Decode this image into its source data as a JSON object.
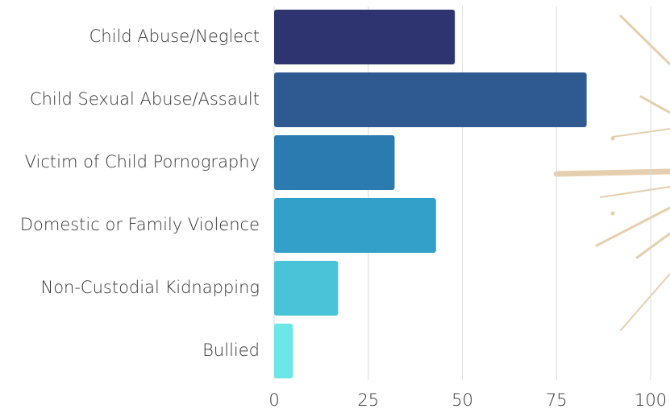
{
  "chart_data": {
    "type": "bar",
    "orientation": "horizontal",
    "categories": [
      "Child Abuse/Neglect",
      "Child Sexual Abuse/Assault",
      "Victim of Child Pornography",
      "Domestic or Family Violence",
      "Non-Custodial Kidnapping",
      "Bullied"
    ],
    "values": [
      48,
      83,
      32,
      43,
      17,
      5
    ],
    "colors": [
      "#2e346f",
      "#2e5a91",
      "#2c7bb0",
      "#33a0c9",
      "#4ac3d9",
      "#6de6e6"
    ],
    "xlim": [
      0,
      100
    ],
    "xticks": [
      0,
      25,
      50,
      75,
      100
    ],
    "grid": true
  }
}
